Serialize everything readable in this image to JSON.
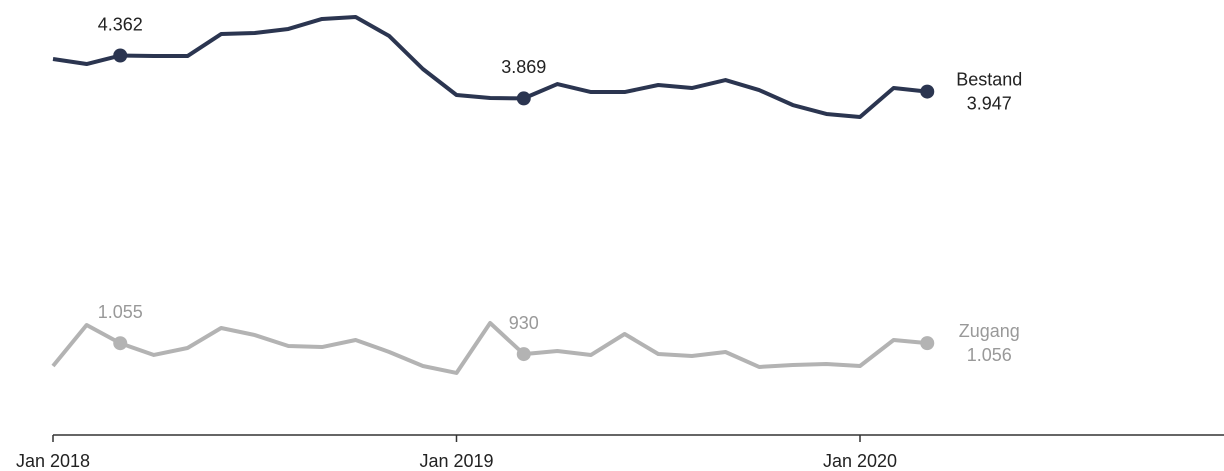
{
  "chart_data": {
    "type": "line",
    "x": [
      "2018-01",
      "2018-02",
      "2018-03",
      "2018-04",
      "2018-05",
      "2018-06",
      "2018-07",
      "2018-08",
      "2018-09",
      "2018-10",
      "2018-11",
      "2018-12",
      "2019-01",
      "2019-02",
      "2019-03",
      "2019-04",
      "2019-05",
      "2019-06",
      "2019-07",
      "2019-08",
      "2019-09",
      "2019-10",
      "2019-11",
      "2019-12",
      "2020-01",
      "2020-02",
      "2020-03"
    ],
    "series": [
      {
        "name": "Bestand",
        "color": "#2b3550",
        "values": [
          4322,
          4264,
          4362,
          4356,
          4356,
          4609,
          4621,
          4667,
          4782,
          4804,
          4586,
          4207,
          3908,
          3873,
          3869,
          4034,
          3942,
          3942,
          4023,
          3988,
          4080,
          3965,
          3793,
          3690,
          3655,
          3988,
          3947
        ],
        "value_labels": [
          null,
          null,
          "4.362",
          null,
          null,
          null,
          null,
          null,
          null,
          null,
          null,
          null,
          null,
          null,
          "3.869",
          null,
          null,
          null,
          null,
          null,
          null,
          null,
          null,
          null,
          null,
          null,
          "3.947"
        ]
      },
      {
        "name": "Zugang",
        "color": "#b3b3b3",
        "values": [
          793,
          1264,
          1055,
          920,
          1000,
          1230,
          1149,
          1023,
          1011,
          1092,
          954,
          793,
          713,
          1287,
          930,
          966,
          920,
          1161,
          931,
          908,
          954,
          782,
          805,
          816,
          793,
          1092,
          1056
        ],
        "value_labels": [
          null,
          null,
          "1.055",
          null,
          null,
          null,
          null,
          null,
          null,
          null,
          null,
          null,
          null,
          null,
          "930",
          null,
          null,
          null,
          null,
          null,
          null,
          null,
          null,
          null,
          null,
          null,
          "1.056"
        ]
      }
    ],
    "xlim": [
      "2018-01",
      "2020-12"
    ],
    "xticks": [
      {
        "value": "2018-01",
        "label": "Jan 2018"
      },
      {
        "value": "2019-01",
        "label": "Jan 2019"
      },
      {
        "value": "2020-01",
        "label": "Jan 2020"
      }
    ],
    "ylim": [
      0,
      5000
    ]
  }
}
